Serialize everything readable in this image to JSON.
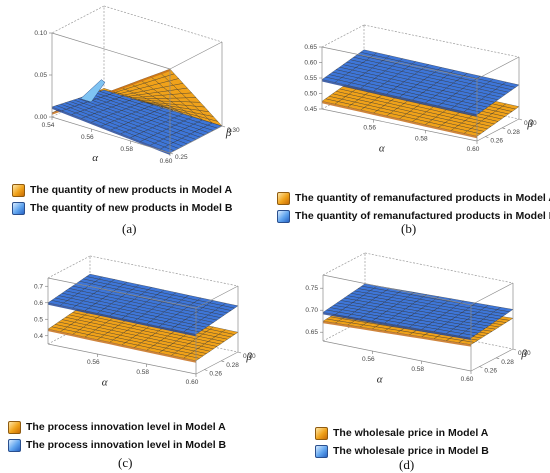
{
  "colors": {
    "model_a": "#f0a21a",
    "model_a_dark": "#c7701a",
    "model_b": "#3e76d8",
    "model_b_light": "#7fc3f2",
    "floor": "#cfcfcf"
  },
  "chart_data": [
    {
      "type": "surface3d",
      "panel_label": "(a)",
      "x_axis": {
        "name": "α",
        "range": [
          0.54,
          0.6
        ],
        "ticks": [
          "0.54",
          "0.56",
          "0.58",
          "0.60"
        ]
      },
      "y_axis": {
        "name": "β",
        "range": [
          0.25,
          0.3
        ],
        "ticks": [
          "0.25",
          "0.30"
        ]
      },
      "z_axis": {
        "range": [
          0.0,
          0.1
        ],
        "ticks": [
          "0.00",
          "0.05",
          "0.10"
        ]
      },
      "series": [
        {
          "name": "The quantity of new products in Model A",
          "color": "orange",
          "corners": [
            0.005,
            0.1,
            0.0,
            0.002
          ]
        },
        {
          "name": "The quantity of new products in Model B",
          "color": "blue",
          "corners": [
            0.012,
            0.0,
            0.0,
            0.0
          ]
        }
      ]
    },
    {
      "type": "surface3d",
      "panel_label": "(b)",
      "x_axis": {
        "name": "α",
        "range": [
          0.54,
          0.6
        ],
        "ticks": [
          "0.56",
          "0.58",
          "0.60"
        ]
      },
      "y_axis": {
        "name": "β",
        "range": [
          0.25,
          0.3
        ],
        "ticks": [
          "0.26",
          "0.28",
          "0.30"
        ]
      },
      "z_axis": {
        "range": [
          0.45,
          0.65
        ],
        "ticks": [
          "0.45",
          "0.50",
          "0.55",
          "0.60",
          "0.65"
        ]
      },
      "series": [
        {
          "name": "The quantity of remanufactured products in Model A",
          "color": "orange",
          "corners": [
            0.475,
            0.465,
            0.49,
            0.5
          ]
        },
        {
          "name": "The quantity of remanufactured products in Model B",
          "color": "blue",
          "corners": [
            0.545,
            0.535,
            0.56,
            0.57
          ]
        }
      ]
    },
    {
      "type": "surface3d",
      "panel_label": "(c)",
      "x_axis": {
        "name": "α",
        "range": [
          0.54,
          0.6
        ],
        "ticks": [
          "0.56",
          "0.58",
          "0.60"
        ]
      },
      "y_axis": {
        "name": "β",
        "range": [
          0.25,
          0.3
        ],
        "ticks": [
          "0.26",
          "0.28",
          "0.30"
        ]
      },
      "z_axis": {
        "range": [
          0.35,
          0.75
        ],
        "ticks": [
          "0.4",
          "0.5",
          "0.6",
          "0.7"
        ]
      },
      "series": [
        {
          "name": "The process innovation level in Model A",
          "color": "orange",
          "corners": [
            0.44,
            0.43,
            0.47,
            0.48
          ]
        },
        {
          "name": "The process innovation level in Model B",
          "color": "blue",
          "corners": [
            0.6,
            0.59,
            0.63,
            0.64
          ]
        }
      ]
    },
    {
      "type": "surface3d",
      "panel_label": "(d)",
      "x_axis": {
        "name": "α",
        "range": [
          0.54,
          0.6
        ],
        "ticks": [
          "0.56",
          "0.58",
          "0.60"
        ]
      },
      "y_axis": {
        "name": "β",
        "range": [
          0.25,
          0.3
        ],
        "ticks": [
          "0.26",
          "0.28",
          "0.30"
        ]
      },
      "z_axis": {
        "range": [
          0.63,
          0.78
        ],
        "ticks": [
          "0.65",
          "0.70",
          "0.75"
        ]
      },
      "series": [
        {
          "name": "The wholesale price in Model A",
          "color": "orange",
          "corners": [
            0.675,
            0.69,
            0.7,
            0.685
          ]
        },
        {
          "name": "The wholesale price in Model B",
          "color": "blue",
          "corners": [
            0.695,
            0.705,
            0.72,
            0.71
          ]
        }
      ]
    }
  ]
}
